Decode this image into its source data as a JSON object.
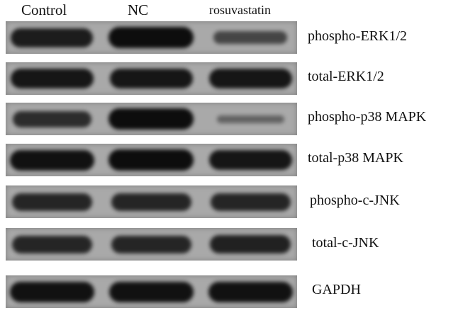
{
  "lanes": [
    "Control",
    "NC",
    "rosuvastatin"
  ],
  "rows": [
    {
      "label": "phospho-ERK1/2",
      "intensity": [
        0.85,
        1.0,
        0.45
      ]
    },
    {
      "label": "total-ERK1/2",
      "intensity": [
        0.9,
        0.9,
        0.9
      ]
    },
    {
      "label": "phospho-p38 MAPK",
      "intensity": [
        0.7,
        1.0,
        0.15
      ]
    },
    {
      "label": "total-p38 MAPK",
      "intensity": [
        0.95,
        1.0,
        0.9
      ]
    },
    {
      "label": "phospho-c-JNK",
      "intensity": [
        0.75,
        0.75,
        0.75
      ]
    },
    {
      "label": "total-c-JNK",
      "intensity": [
        0.75,
        0.75,
        0.8
      ]
    },
    {
      "label": "GAPDH",
      "intensity": [
        0.95,
        0.95,
        0.95
      ]
    }
  ],
  "colors": {
    "membrane": "#a9a9a9",
    "band": "#0d0d0d"
  }
}
